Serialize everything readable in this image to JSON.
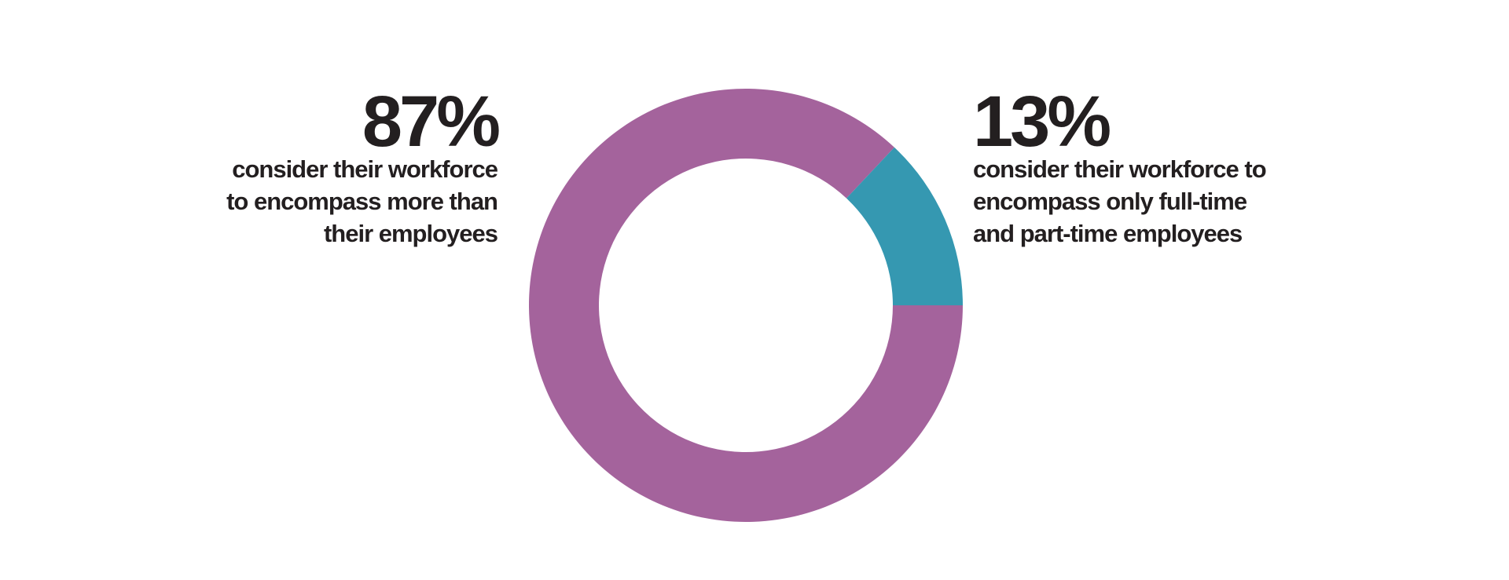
{
  "chart_data": {
    "type": "donut",
    "values": [
      87,
      13
    ],
    "value_labels": [
      "87%",
      "13%"
    ],
    "colors": [
      "#a4639c",
      "#3598b1"
    ],
    "labels": [
      [
        "consider their workforce",
        "to encompass more than",
        "their employees"
      ],
      [
        "consider their workforce to",
        "encompass only full-time",
        "and part-time employees"
      ]
    ]
  }
}
